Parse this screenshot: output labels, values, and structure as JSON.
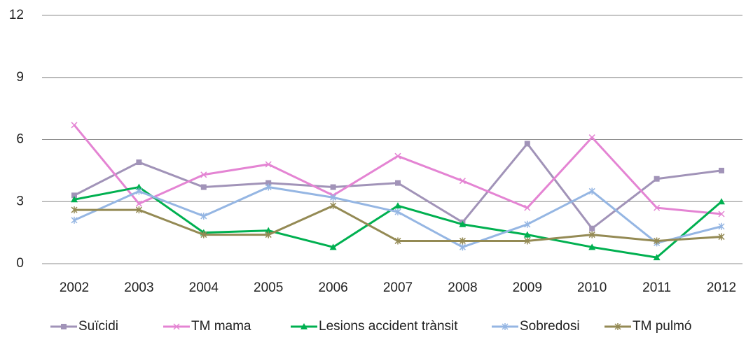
{
  "chart_data": {
    "type": "line",
    "categories": [
      "2002",
      "2003",
      "2004",
      "2005",
      "2006",
      "2007",
      "2008",
      "2009",
      "2010",
      "2011",
      "2012"
    ],
    "series": [
      {
        "name": "Suïcidi",
        "color": "#a193b8",
        "marker": "square",
        "values": [
          3.3,
          4.9,
          3.7,
          3.9,
          3.7,
          3.9,
          2.0,
          5.8,
          1.7,
          4.1,
          4.5
        ]
      },
      {
        "name": "TM mama",
        "color": "#e484d3",
        "marker": "x",
        "values": [
          6.7,
          2.9,
          4.3,
          4.8,
          3.3,
          5.2,
          4.0,
          2.7,
          6.1,
          2.7,
          2.4
        ]
      },
      {
        "name": "Lesions accident trànsit",
        "color": "#00b050",
        "marker": "triangle",
        "values": [
          3.1,
          3.7,
          1.5,
          1.6,
          0.8,
          2.8,
          1.9,
          1.4,
          0.8,
          0.3,
          3.0
        ]
      },
      {
        "name": "Sobredosi",
        "color": "#95b6e3",
        "marker": "star",
        "values": [
          2.1,
          3.5,
          2.3,
          3.7,
          3.2,
          2.5,
          0.8,
          1.9,
          3.5,
          1.0,
          1.8
        ]
      },
      {
        "name": "TM pulmó",
        "color": "#948a54",
        "marker": "star",
        "values": [
          2.6,
          2.6,
          1.4,
          1.4,
          2.8,
          1.1,
          1.1,
          1.1,
          1.4,
          1.1,
          1.3
        ]
      }
    ],
    "ylim": [
      0,
      12
    ],
    "yticks": [
      0,
      3,
      6,
      9,
      12
    ],
    "grid": true,
    "legend": "bottom"
  }
}
